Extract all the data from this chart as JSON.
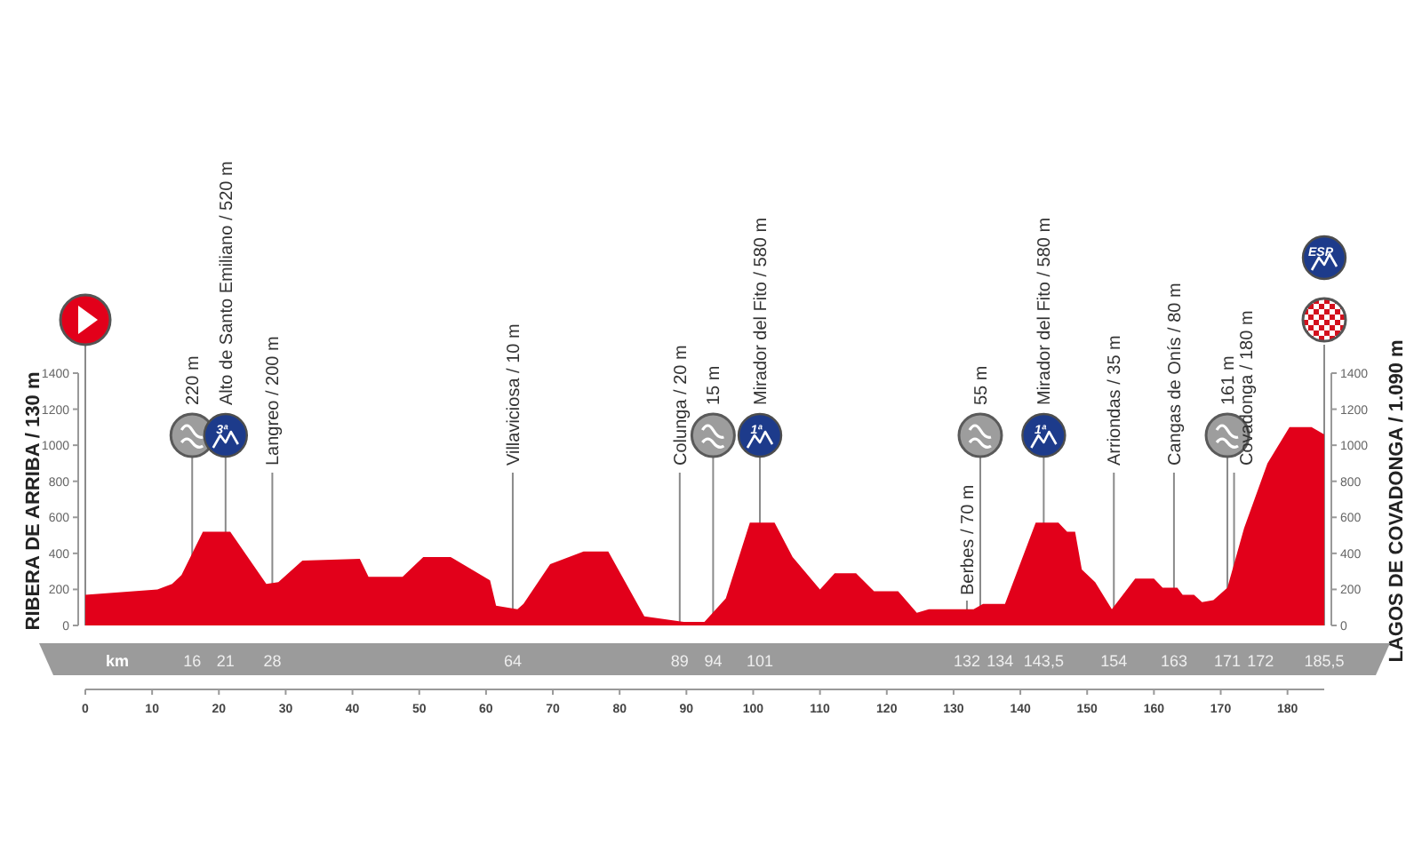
{
  "chart_data": {
    "type": "area",
    "x": [
      0,
      10.8,
      13,
      14.4,
      17.6,
      21.7,
      27.1,
      28.9,
      32.5,
      41.1,
      42.4,
      47.5,
      50.6,
      54.7,
      60.6,
      61.5,
      64.7,
      65.6,
      69.6,
      74.6,
      78.3,
      83.7,
      89.6,
      92.7,
      95.9,
      99.5,
      103.2,
      105.9,
      110,
      112.2,
      115.4,
      118.1,
      121.7,
      124.5,
      126.3,
      131.3,
      133,
      134.4,
      137.7,
      142.3,
      145.7,
      147,
      148.2,
      149.2,
      151.2,
      153.7,
      157.2,
      160,
      161.3,
      163.5,
      164.3,
      166,
      167.2,
      168.9,
      171,
      173.5,
      177,
      180.3,
      183.6,
      185.5
    ],
    "series": [
      {
        "color": "#e2001a",
        "values": [
          170,
          200,
          230,
          280,
          520,
          520,
          230,
          240,
          360,
          370,
          270,
          270,
          380,
          380,
          250,
          110,
          90,
          120,
          340,
          410,
          410,
          50,
          20,
          20,
          150,
          570,
          570,
          380,
          200,
          290,
          290,
          190,
          190,
          70,
          90,
          90,
          90,
          120,
          120,
          570,
          570,
          520,
          520,
          310,
          240,
          90,
          260,
          260,
          210,
          210,
          170,
          170,
          130,
          140,
          210,
          540,
          900,
          1100,
          1100,
          1060
        ]
      }
    ],
    "xlim": [
      0,
      185.5
    ],
    "xticks": [
      0,
      10,
      20,
      30,
      40,
      50,
      60,
      70,
      80,
      90,
      100,
      110,
      120,
      130,
      140,
      150,
      160,
      170,
      180
    ],
    "ylim": [
      0,
      1400
    ],
    "yticks": [
      0,
      200,
      400,
      600,
      800,
      1000,
      1200,
      1400
    ],
    "y2lim": [
      0,
      1400
    ],
    "y2ticks": [
      0,
      200,
      400,
      600,
      800,
      1000,
      1200,
      1400
    ],
    "ylabel": "RIBERA DE ARRIBA / 130 m",
    "y2label": "LAGOS DE COVADONGA / 1.090 m",
    "ref_lines": [
      {
        "axis": "x",
        "value": 16,
        "label": "220 m"
      },
      {
        "axis": "x",
        "value": 21,
        "label": "Alto de Santo Emiliano / 520 m"
      },
      {
        "axis": "x",
        "value": 28,
        "label": "Langreo / 200 m"
      },
      {
        "axis": "x",
        "value": 64,
        "label": "Villaviciosa / 10 m"
      },
      {
        "axis": "x",
        "value": 89,
        "label": "Colunga / 20 m"
      },
      {
        "axis": "x",
        "value": 94,
        "label": "15 m"
      },
      {
        "axis": "x",
        "value": 101,
        "label": "Mirador del Fito / 580 m"
      },
      {
        "axis": "x",
        "value": 132,
        "label": "Berbes / 70 m"
      },
      {
        "axis": "x",
        "value": 134,
        "label": "55 m"
      },
      {
        "axis": "x",
        "value": 143.5,
        "label": "Mirador del Fito / 580 m"
      },
      {
        "axis": "x",
        "value": 154,
        "label": "Arriondas / 35 m"
      },
      {
        "axis": "x",
        "value": 163,
        "label": "Cangas de Onís / 80 m"
      },
      {
        "axis": "x",
        "value": 171,
        "label": "161 m"
      },
      {
        "axis": "x",
        "value": 172,
        "label": "Covadonga / 180 m"
      }
    ],
    "annotations": [
      "km",
      "3ª",
      "1ª",
      "1ª",
      "ESP",
      "16",
      "21",
      "28",
      "64",
      "89",
      "94",
      "101",
      "132",
      "134",
      "143,5",
      "154",
      "163",
      "171",
      "172",
      "185,5"
    ]
  }
}
